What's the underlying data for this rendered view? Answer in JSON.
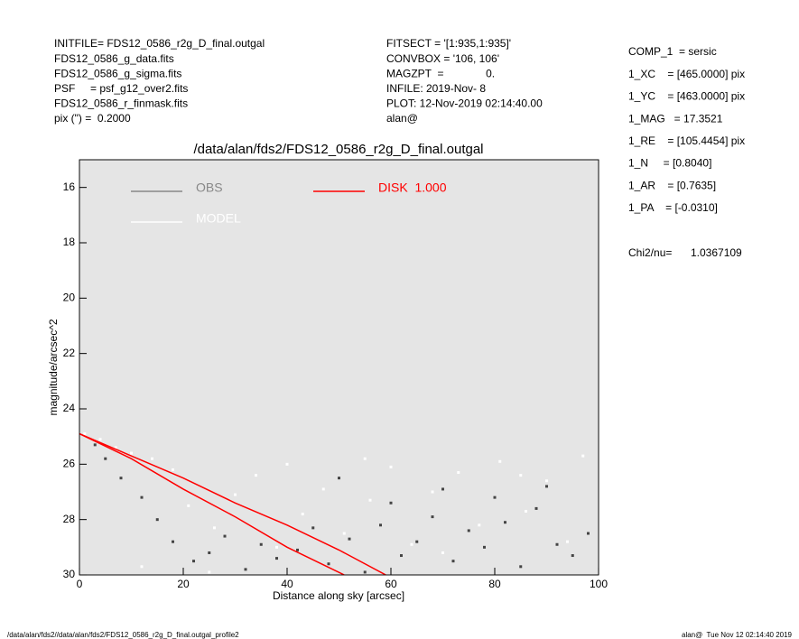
{
  "header": {
    "left": [
      "INITFILE= FDS12_0586_r2g_D_final.outgal",
      "FDS12_0586_g_data.fits",
      "FDS12_0586_g_sigma.fits",
      "PSF     = psf_g12_over2.fits",
      "FDS12_0586_r_finmask.fits",
      "pix (\") =  0.2000"
    ],
    "center": [
      "FITSECT = '[1:935,1:935]'",
      "CONVBOX = '106, 106'",
      "MAGZPT  =              0.",
      "INFILE: 2019-Nov- 8",
      "PLOT: 12-Nov-2019 02:14:40.00",
      "alan@"
    ],
    "right": [
      "COMP_1  = sersic",
      "1_XC    = [465.0000] pix",
      "1_YC    = [463.0000] pix",
      "1_MAG   = 17.3521",
      "1_RE    = [105.4454] pix",
      "1_N     = [0.8040]",
      "1_AR    = [0.7635]",
      "1_PA    = [-0.0310]"
    ],
    "chi2_label": "Chi2/nu=",
    "chi2_value": "1.0367109"
  },
  "footer": {
    "left": "/data/alan/fds2//data/alan/fds2/FDS12_0586_r2g_D_final.outgal_profile2",
    "right": "alan@  Tue Nov 12 02:14:40 2019"
  },
  "chart_data": {
    "type": "scatter",
    "title": "/data/alan/fds2/FDS12_0586_r2g_D_final.outgal",
    "x_label": "Distance along sky [arcsec]",
    "y_label": "magnitude/arcsec^2",
    "xlim": [
      0,
      100
    ],
    "xticks": [
      0,
      20,
      40,
      60,
      80,
      100
    ],
    "ylim": [
      30,
      15
    ],
    "yticks": [
      16,
      18,
      20,
      22,
      24,
      26,
      28,
      30
    ],
    "background": "#e5e5e5",
    "series": [
      {
        "name": "MODEL",
        "color": "#ffffff",
        "x": [
          1,
          4,
          7,
          10,
          14,
          18,
          21,
          26,
          30,
          34,
          38,
          43,
          47,
          51,
          56,
          60,
          64,
          68,
          73,
          77,
          81,
          86,
          90,
          94,
          97,
          12,
          25,
          40,
          55,
          70,
          85
        ],
        "values": [
          24.9,
          25.1,
          25.4,
          25.6,
          25.8,
          26.2,
          27.5,
          28.3,
          27.1,
          26.4,
          29.0,
          27.8,
          26.9,
          28.5,
          27.3,
          26.1,
          28.9,
          27.0,
          26.3,
          28.2,
          25.9,
          27.7,
          26.6,
          28.8,
          25.7,
          29.7,
          29.9,
          26.0,
          25.8,
          29.2,
          26.4
        ]
      },
      {
        "name": "OBS",
        "color": "#444444",
        "legend_color": "#888888",
        "x": [
          3,
          5,
          8,
          12,
          15,
          18,
          22,
          25,
          28,
          32,
          35,
          38,
          42,
          45,
          48,
          52,
          55,
          58,
          62,
          65,
          68,
          72,
          75,
          78,
          82,
          85,
          88,
          92,
          95,
          98,
          60,
          70,
          80,
          90,
          50
        ],
        "values": [
          25.3,
          25.8,
          26.5,
          27.2,
          28.0,
          28.8,
          29.5,
          29.2,
          28.6,
          29.8,
          28.9,
          29.4,
          29.1,
          28.3,
          29.6,
          28.7,
          29.9,
          28.2,
          29.3,
          28.8,
          27.9,
          29.5,
          28.4,
          29.0,
          28.1,
          29.7,
          27.6,
          28.9,
          29.3,
          28.5,
          27.4,
          26.9,
          27.2,
          26.8,
          26.5
        ]
      }
    ],
    "model": {
      "name": "DISK  1.000",
      "color": "#ff0000",
      "x": [
        0,
        10,
        20,
        30,
        40,
        50,
        59
      ],
      "values": [
        24.9,
        25.7,
        26.5,
        27.4,
        28.2,
        29.1,
        30
      ],
      "x_inner": [
        0,
        10,
        20,
        30,
        40,
        51
      ],
      "values_inner": [
        24.9,
        25.8,
        26.9,
        27.9,
        29.0,
        30
      ]
    }
  }
}
